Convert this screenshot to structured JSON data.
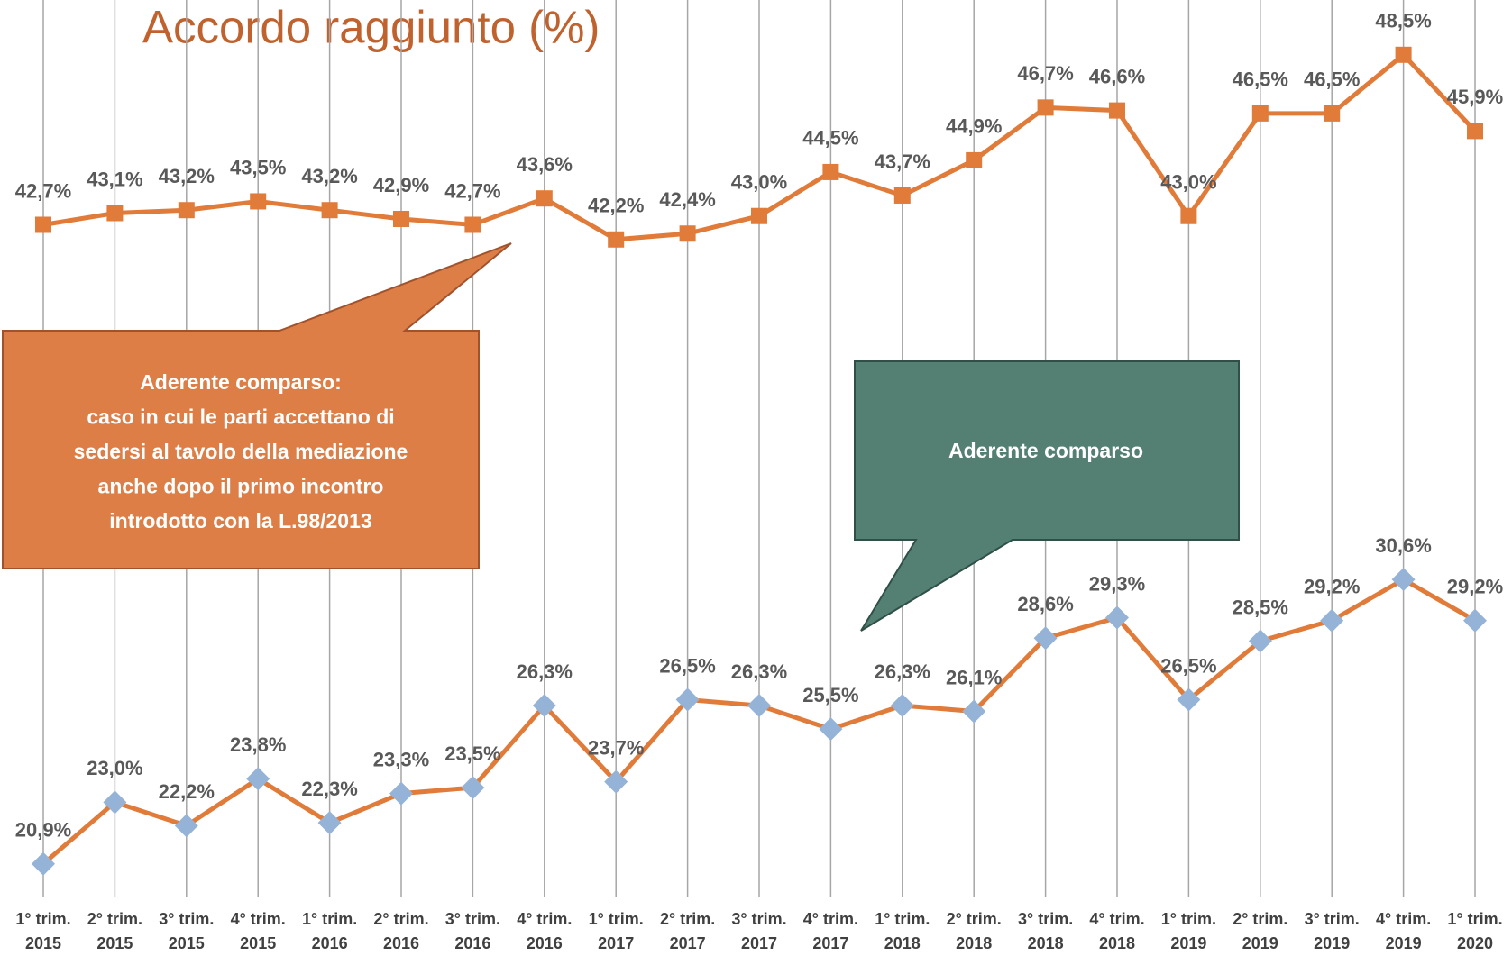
{
  "chart_data": {
    "type": "line",
    "title": "Accordo raggiunto (%)",
    "categories": [
      "1° trim. 2015",
      "2° trim. 2015",
      "3° trim. 2015",
      "4° trim. 2015",
      "1° trim. 2016",
      "2° trim. 2016",
      "3° trim. 2016",
      "4° trim. 2016",
      "1° trim. 2017",
      "2° trim. 2017",
      "3° trim. 2017",
      "4° trim. 2017",
      "1° trim. 2018",
      "2° trim. 2018",
      "3° trim. 2018",
      "4° trim. 2018",
      "1° trim. 2019",
      "2° trim. 2019",
      "3° trim. 2019",
      "4° trim. 2019",
      "1° trim. 2020"
    ],
    "series": [
      {
        "color": "#e07b39",
        "marker": "square",
        "marker_color": "#e07b39",
        "values": [
          42.7,
          43.1,
          43.2,
          43.5,
          43.2,
          42.9,
          42.7,
          43.6,
          42.2,
          42.4,
          43.0,
          44.5,
          43.7,
          44.9,
          46.7,
          46.6,
          43.0,
          46.5,
          46.5,
          48.5,
          45.9
        ],
        "value_labels": [
          "42,7%",
          "43,1%",
          "43,2%",
          "43,5%",
          "43,2%",
          "42,9%",
          "42,7%",
          "43,6%",
          "42,2%",
          "42,4%",
          "43,0%",
          "44,5%",
          "43,7%",
          "44,9%",
          "46,7%",
          "46,6%",
          "43,0%",
          "46,5%",
          "46,5%",
          "48,5%",
          "45,9%"
        ]
      },
      {
        "color": "#e07b39",
        "marker": "diamond",
        "marker_color": "#95b3d7",
        "values": [
          20.9,
          23.0,
          22.2,
          23.8,
          22.3,
          23.3,
          23.5,
          26.3,
          23.7,
          26.5,
          26.3,
          25.5,
          26.3,
          26.1,
          28.6,
          29.3,
          26.5,
          28.5,
          29.2,
          30.6,
          29.2
        ],
        "value_labels": [
          "20,9%",
          "23,0%",
          "22,2%",
          "23,8%",
          "22,3%",
          "23,3%",
          "23,5%",
          "26,3%",
          "23,7%",
          "26,5%",
          "26,3%",
          "25,5%",
          "26,3%",
          "26,1%",
          "28,6%",
          "29,3%",
          "26,5%",
          "28,5%",
          "29,2%",
          "30,6%",
          "29,2%"
        ]
      }
    ],
    "ylim": [
      20,
      50
    ],
    "grid": true,
    "annotations": [
      {
        "lines": [
          "Aderente comparso:",
          "caso in cui le parti accettano di",
          "sedersi al tavolo della mediazione",
          "anche dopo il primo incontro",
          "introdotto con la L.98/2013"
        ],
        "color": "#dd7e47"
      },
      {
        "lines": [
          "Aderente comparso"
        ],
        "color": "#548074"
      }
    ]
  }
}
